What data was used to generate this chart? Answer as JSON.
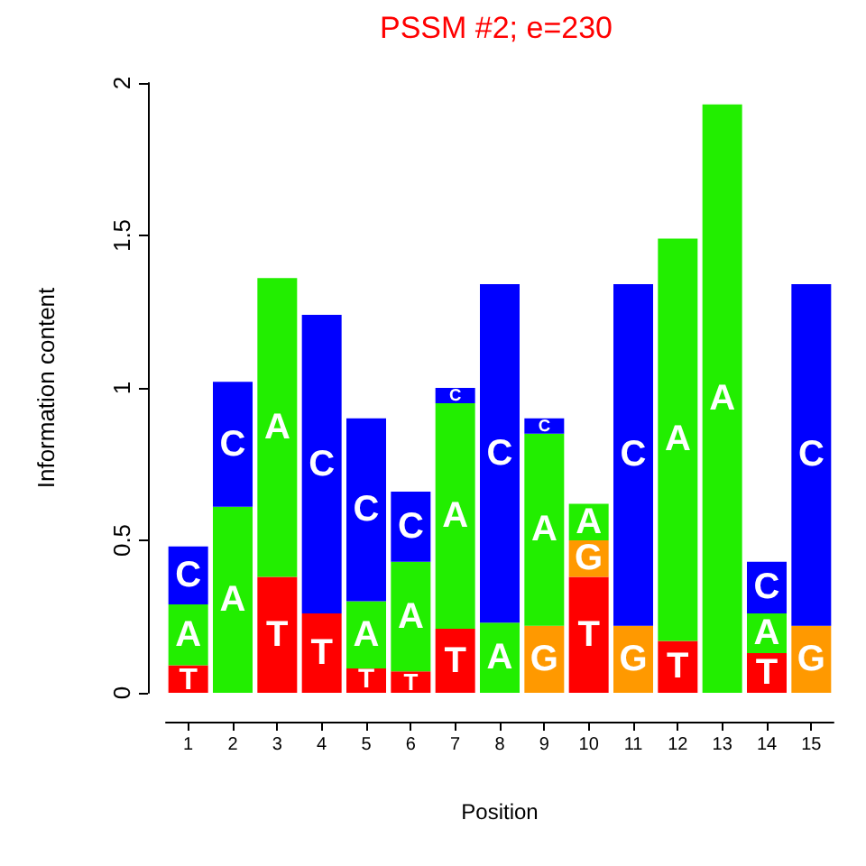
{
  "chart_data": {
    "type": "bar",
    "stacked": true,
    "title": "PSSM #2; e=230",
    "xlabel": "Position",
    "ylabel": "Information content",
    "x": [
      1,
      2,
      3,
      4,
      5,
      6,
      7,
      8,
      9,
      10,
      11,
      12,
      13,
      14,
      15
    ],
    "xlim": [
      0.5,
      15.5
    ],
    "xticks": [
      1,
      2,
      3,
      4,
      5,
      6,
      7,
      8,
      9,
      10,
      11,
      12,
      13,
      14,
      15
    ],
    "series": [
      {
        "name": "T",
        "color": "#ff0000",
        "values": [
          0.09,
          0,
          0.38,
          0.26,
          0.08,
          0.07,
          0.21,
          0,
          0,
          0.38,
          0,
          0.17,
          0,
          0.13,
          0
        ]
      },
      {
        "name": "G",
        "color": "#ff9900",
        "values": [
          0,
          0,
          0,
          0,
          0,
          0,
          0,
          0,
          0.22,
          0.12,
          0.22,
          0,
          0,
          0,
          0.22
        ]
      },
      {
        "name": "A",
        "color": "#22ee00",
        "values": [
          0.2,
          0.61,
          0.98,
          0,
          0.22,
          0.36,
          0.74,
          0.23,
          0.63,
          0.12,
          0,
          1.32,
          1.93,
          0.13,
          0
        ]
      },
      {
        "name": "C",
        "color": "#0000ff",
        "values": [
          0.19,
          0.41,
          0,
          0.98,
          0.6,
          0.23,
          0.05,
          1.11,
          0.05,
          0,
          1.12,
          0,
          0,
          0.17,
          1.12
        ]
      }
    ],
    "ylim": [
      0,
      2
    ],
    "yticks": [
      0,
      0.5,
      1,
      1.5,
      2
    ],
    "grid": false,
    "legend": false
  }
}
